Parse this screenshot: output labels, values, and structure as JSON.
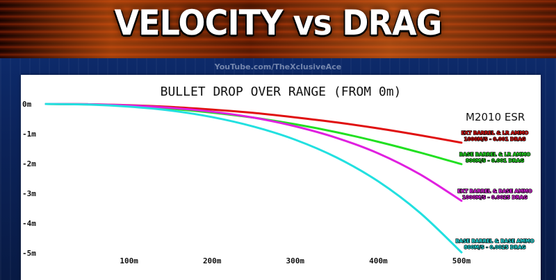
{
  "header": {
    "title": "VELOCITY vs DRAG",
    "watermark": "YouTube.com/TheXclusiveAce"
  },
  "chart_data": {
    "type": "line",
    "title": "BULLET DROP OVER RANGE (FROM 0m)",
    "annotation": "M2010 ESR",
    "xlabel": "",
    "ylabel": "",
    "xlim": [
      0,
      500
    ],
    "ylim": [
      -5,
      0
    ],
    "x_ticks": [
      "100m",
      "200m",
      "300m",
      "400m",
      "500m"
    ],
    "y_ticks": [
      "0m",
      "-1m",
      "-2m",
      "-3m",
      "-4m",
      "-5m"
    ],
    "grid": false,
    "x": [
      0,
      50,
      100,
      150,
      200,
      250,
      300,
      350,
      400,
      450,
      500
    ],
    "series": [
      {
        "label_line1": "EXT BARREL & LR AMMO",
        "label_line2": "1000M/S - 0.001 DRAG",
        "color": "#e01010",
        "values": [
          0,
          -0.01,
          -0.04,
          -0.1,
          -0.19,
          -0.3,
          -0.45,
          -0.62,
          -0.82,
          -1.05,
          -1.3
        ]
      },
      {
        "label_line1": "BASE BARREL & LR AMMO",
        "label_line2": "800M/S - 0.001 DRAG",
        "color": "#22e022",
        "values": [
          0,
          -0.015,
          -0.07,
          -0.16,
          -0.29,
          -0.46,
          -0.68,
          -0.95,
          -1.27,
          -1.63,
          -2.02
        ]
      },
      {
        "label_line1": "EXT BARREL & BASE AMMO",
        "label_line2": "1000M/S - 0.0025 DRAG",
        "color": "#e020e0",
        "values": [
          0,
          -0.01,
          -0.05,
          -0.13,
          -0.26,
          -0.46,
          -0.75,
          -1.14,
          -1.66,
          -2.36,
          -3.25
        ]
      },
      {
        "label_line1": "BASE BARREL & BASE AMMO",
        "label_line2": "800M/S - 0.0025 DRAG",
        "color": "#22e0e0",
        "values": [
          0,
          -0.02,
          -0.09,
          -0.22,
          -0.44,
          -0.76,
          -1.2,
          -1.8,
          -2.6,
          -3.65,
          -4.98
        ]
      }
    ]
  }
}
